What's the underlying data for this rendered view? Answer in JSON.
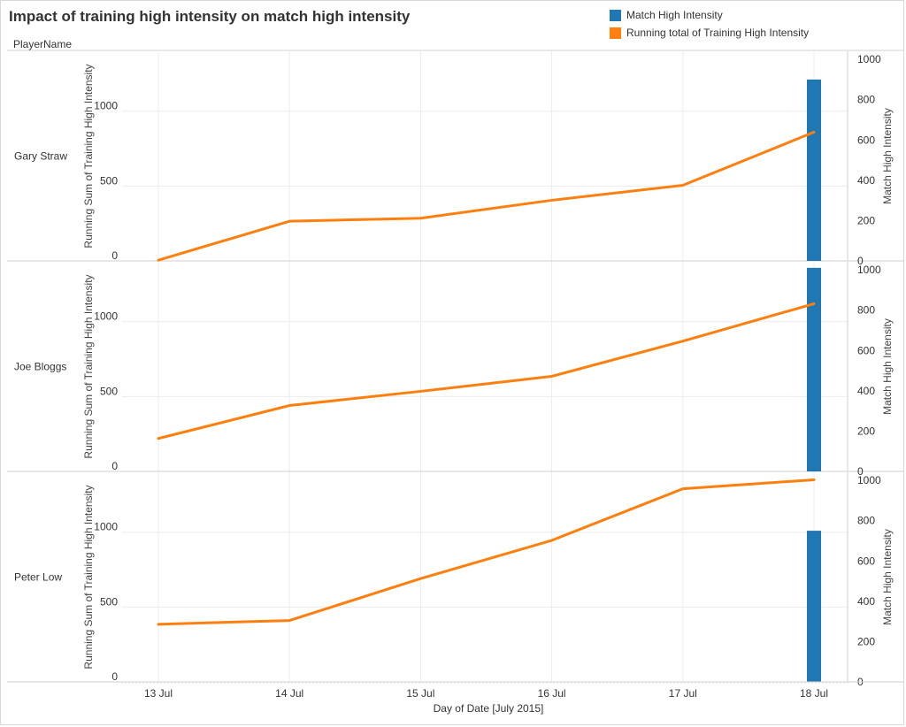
{
  "chart_data": {
    "type": "line+bar",
    "title": "Impact of training high intensity on match high intensity",
    "row_header": "PlayerName",
    "categories": [
      "13 Jul",
      "14 Jul",
      "15 Jul",
      "16 Jul",
      "17 Jul",
      "18 Jul"
    ],
    "xlabel": "Day of Date [July 2015]",
    "ylabel_left": "Running Sum of Training High Intensity",
    "ylabel_right": "Match High Intensity",
    "ylim_left": [
      0,
      1400
    ],
    "ylim_right": [
      0,
      1040
    ],
    "ticks_left": [
      0,
      500,
      1000
    ],
    "ticks_right": [
      0,
      200,
      400,
      600,
      800,
      1000
    ],
    "legend": [
      {
        "name": "Match High Intensity",
        "color": "#1f77b4"
      },
      {
        "name": "Running total of Training High Intensity",
        "color": "#ff7f0e"
      }
    ],
    "panels": [
      {
        "player": "Gary Straw",
        "running_total": [
          5,
          265,
          285,
          405,
          505,
          860
        ],
        "match": [
          0,
          0,
          0,
          0,
          0,
          900
        ]
      },
      {
        "player": "Joe Bloggs",
        "running_total": [
          220,
          440,
          535,
          635,
          870,
          1120
        ],
        "match": [
          0,
          0,
          0,
          0,
          0,
          1010
        ]
      },
      {
        "player": "Peter Low",
        "running_total": [
          385,
          410,
          690,
          945,
          1290,
          1350
        ],
        "match": [
          0,
          0,
          0,
          0,
          0,
          750
        ]
      }
    ],
    "grid": true,
    "legend_position": "top-right"
  }
}
